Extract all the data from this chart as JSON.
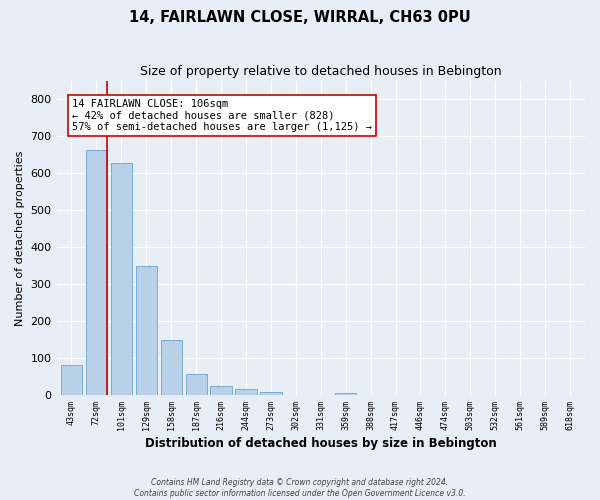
{
  "title": "14, FAIRLAWN CLOSE, WIRRAL, CH63 0PU",
  "subtitle": "Size of property relative to detached houses in Bebington",
  "xlabel": "Distribution of detached houses by size in Bebington",
  "ylabel": "Number of detached properties",
  "categories": [
    "43sqm",
    "72sqm",
    "101sqm",
    "129sqm",
    "158sqm",
    "187sqm",
    "216sqm",
    "244sqm",
    "273sqm",
    "302sqm",
    "331sqm",
    "359sqm",
    "388sqm",
    "417sqm",
    "446sqm",
    "474sqm",
    "503sqm",
    "532sqm",
    "561sqm",
    "589sqm",
    "618sqm"
  ],
  "values": [
    82,
    662,
    628,
    348,
    148,
    57,
    26,
    18,
    8,
    0,
    0,
    7,
    0,
    0,
    0,
    0,
    0,
    0,
    0,
    0,
    0
  ],
  "bar_color": "#b8d0e8",
  "bar_edge_color": "#7aadd4",
  "vline_color": "#cc0000",
  "annotation_line1": "14 FAIRLAWN CLOSE: 106sqm",
  "annotation_line2": "← 42% of detached houses are smaller (828)",
  "annotation_line3": "57% of semi-detached houses are larger (1,125) →",
  "annotation_box_edgecolor": "#cc0000",
  "annotation_box_facecolor": "#ffffff",
  "ylim": [
    0,
    850
  ],
  "yticks": [
    0,
    100,
    200,
    300,
    400,
    500,
    600,
    700,
    800
  ],
  "footnote_line1": "Contains HM Land Registry data © Crown copyright and database right 2024.",
  "footnote_line2": "Contains public sector information licensed under the Open Government Licence v3.0.",
  "background_color": "#e8eef5",
  "plot_bg_color": "#e8eef5"
}
